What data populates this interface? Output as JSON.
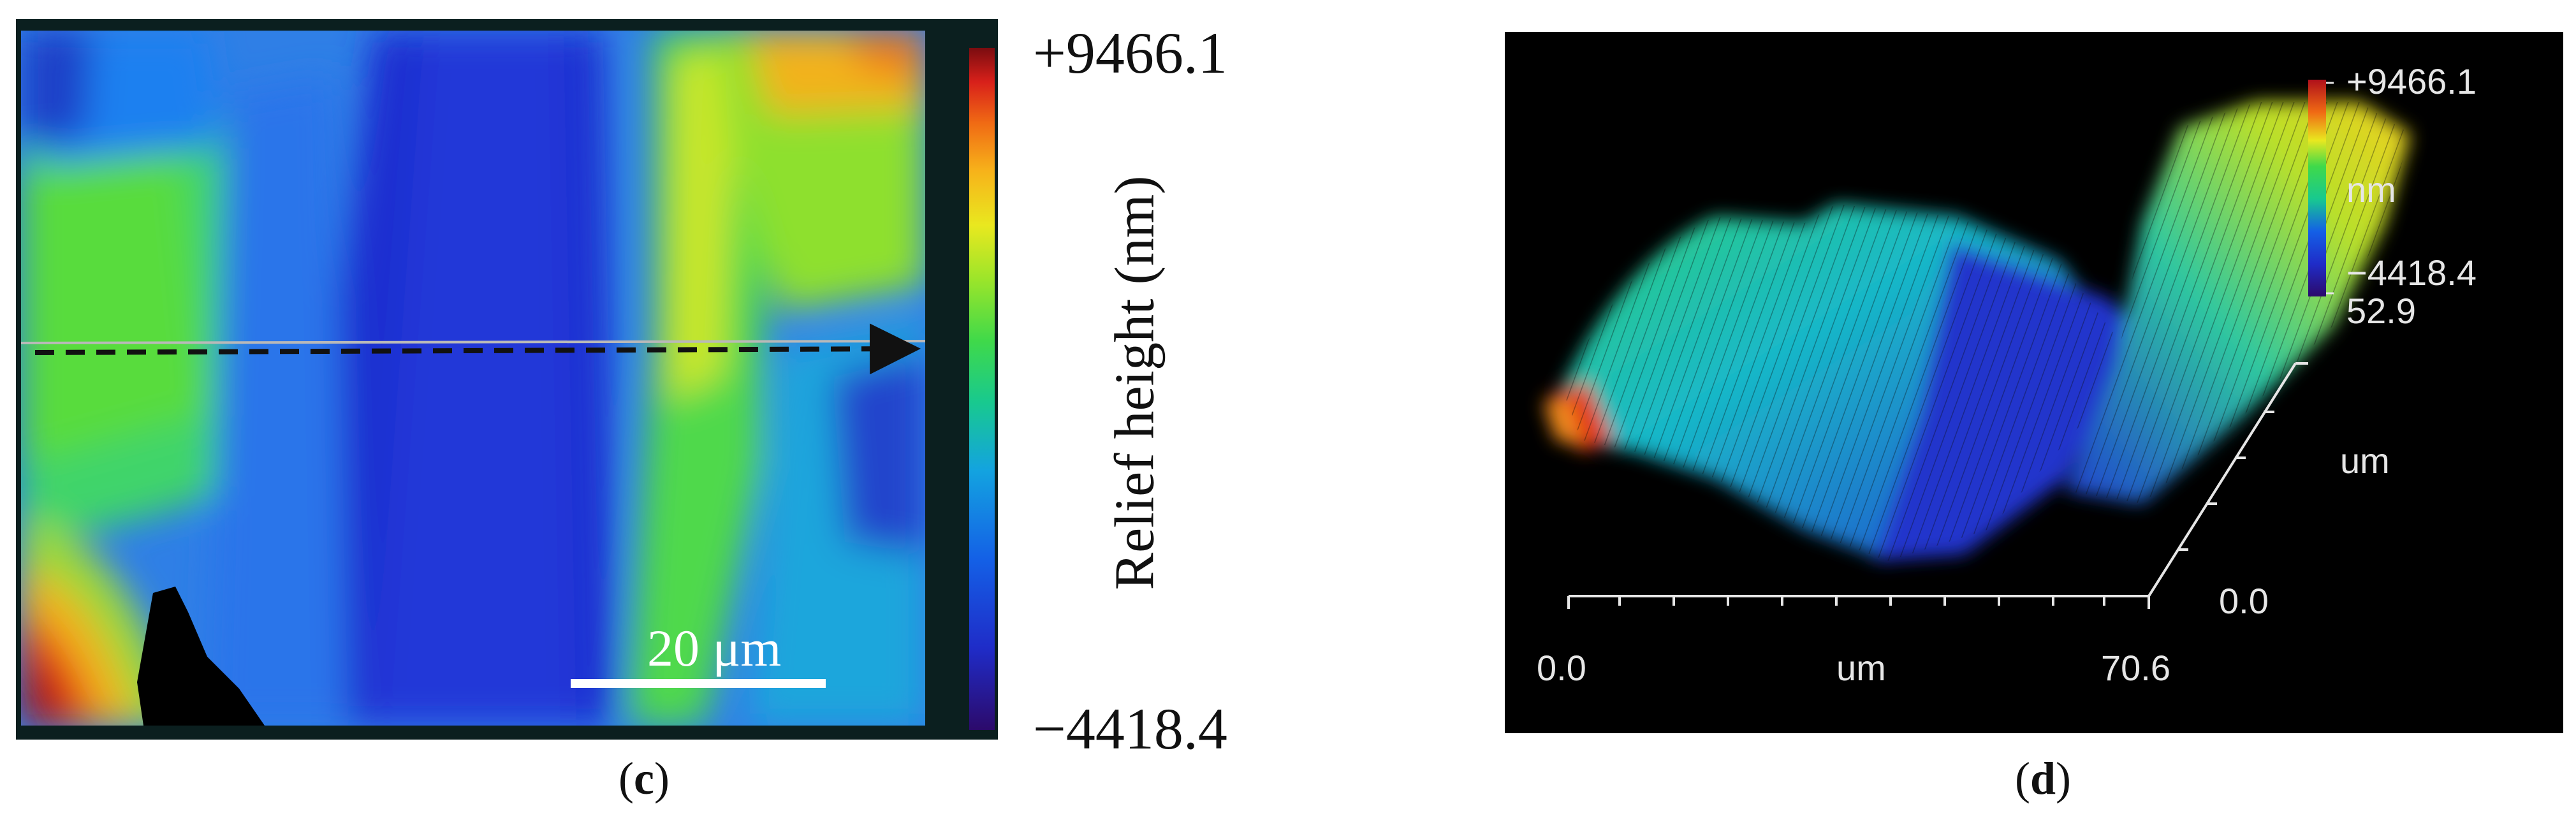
{
  "panel_c": {
    "label_open": "(",
    "label_letter": "c",
    "label_close": ")",
    "colorbar_max": "+9466.1",
    "colorbar_min": "−4418.4",
    "axis_label": "Relief height (nm)",
    "scale_bar_text": "20 μm"
  },
  "panel_d": {
    "label_open": "(",
    "label_letter": "d",
    "label_close": ")",
    "colorbar_max": "+9466.1",
    "colorbar_unit": "nm",
    "colorbar_min": "−4418.4",
    "y_max": "52.9",
    "y_unit": "um",
    "y_min": "0.0",
    "x_min": "0.0",
    "x_unit": "um",
    "x_max": "70.6"
  },
  "colors": {
    "colormap": [
      "#2c0a6b",
      "#1f2cc8",
      "#1460e6",
      "#13a3e0",
      "#18c98f",
      "#3fd94a",
      "#9be52a",
      "#e9e81f",
      "#f7b21a",
      "#f06a14",
      "#d8201a",
      "#7a0c10"
    ],
    "frame_c": "#0b1f1f",
    "background_d": "#000000",
    "scan_line_arrow": "#111111"
  }
}
